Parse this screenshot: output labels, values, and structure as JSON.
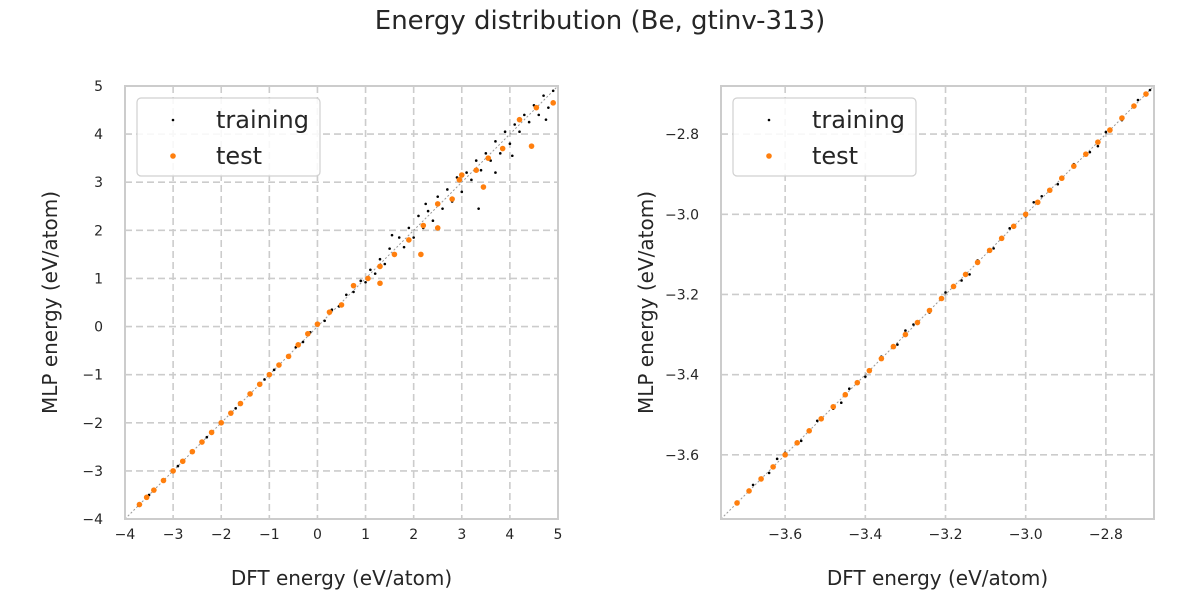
{
  "figure": {
    "title": "Energy distribution (Be, gtinv-313)"
  },
  "colors": {
    "training": "#000000",
    "test": "#ff7f0e",
    "grid": "#cccccc",
    "spine": "#cccccc",
    "diagonal": "#999999"
  },
  "chart_data": [
    {
      "type": "scatter",
      "title": "",
      "xlabel": "DFT energy (eV/atom)",
      "ylabel": "MLP energy (eV/atom)",
      "xlim": [
        -4,
        5
      ],
      "ylim": [
        -4,
        5
      ],
      "xticks": [
        -4,
        -3,
        -2,
        -1,
        0,
        1,
        2,
        3,
        4,
        5
      ],
      "yticks": [
        -4,
        -3,
        -2,
        -1,
        0,
        1,
        2,
        3,
        4,
        5
      ],
      "xtick_labels": [
        "−4",
        "−3",
        "−2",
        "−1",
        "0",
        "1",
        "2",
        "3",
        "4",
        "5"
      ],
      "ytick_labels": [
        "−4",
        "−3",
        "−2",
        "−1",
        "0",
        "1",
        "2",
        "3",
        "4",
        "5"
      ],
      "grid": true,
      "legend": "upper-left",
      "diagonal": true,
      "series": [
        {
          "name": "training",
          "color": "#000000",
          "x": [
            -3.72,
            -3.5,
            -3.2,
            -2.9,
            -2.6,
            -2.3,
            -2.0,
            -1.7,
            -1.4,
            -1.1,
            -0.9,
            -0.6,
            -0.45,
            -0.3,
            -0.15,
            0.0,
            0.15,
            0.3,
            0.45,
            0.6,
            0.75,
            0.9,
            1.0,
            1.1,
            1.2,
            1.3,
            1.4,
            1.5,
            1.6,
            1.7,
            1.8,
            1.9,
            2.0,
            2.1,
            2.2,
            2.3,
            2.4,
            2.5,
            2.6,
            2.7,
            2.8,
            2.9,
            3.0,
            3.1,
            3.2,
            3.3,
            3.4,
            3.5,
            3.6,
            3.7,
            3.8,
            3.9,
            4.0,
            4.1,
            4.2,
            4.3,
            4.4,
            4.5,
            4.6,
            4.7,
            4.8,
            4.9,
            3.35,
            4.05,
            4.75,
            2.25,
            1.55,
            3.7
          ],
          "y": [
            -3.72,
            -3.5,
            -3.2,
            -2.9,
            -2.6,
            -2.3,
            -2.0,
            -1.7,
            -1.4,
            -1.1,
            -0.9,
            -0.6,
            -0.43,
            -0.32,
            -0.12,
            0.05,
            0.12,
            0.35,
            0.42,
            0.66,
            0.72,
            0.95,
            0.92,
            1.18,
            1.1,
            1.4,
            1.3,
            1.62,
            1.5,
            1.85,
            1.65,
            2.05,
            1.85,
            2.3,
            2.05,
            2.4,
            2.2,
            2.7,
            2.45,
            2.85,
            2.6,
            3.1,
            2.8,
            3.2,
            3.05,
            3.45,
            3.25,
            3.6,
            3.45,
            3.85,
            3.6,
            4.05,
            3.8,
            4.2,
            4.05,
            4.4,
            4.25,
            4.6,
            4.4,
            4.8,
            4.55,
            4.9,
            2.45,
            3.55,
            4.3,
            2.55,
            1.9,
            3.2
          ]
        },
        {
          "name": "test",
          "color": "#ff7f0e",
          "x": [
            -3.7,
            -3.55,
            -3.4,
            -3.2,
            -3.0,
            -2.8,
            -2.6,
            -2.4,
            -2.2,
            -2.0,
            -1.8,
            -1.6,
            -1.4,
            -1.2,
            -1.0,
            -0.8,
            -0.6,
            -0.4,
            -0.2,
            0.0,
            0.25,
            0.5,
            0.75,
            1.05,
            1.3,
            1.6,
            1.9,
            2.2,
            2.5,
            2.8,
            3.0,
            3.3,
            3.55,
            3.85,
            4.2,
            4.55,
            4.9,
            2.15,
            2.5,
            1.3,
            4.45,
            3.45,
            2.95
          ],
          "y": [
            -3.7,
            -3.55,
            -3.4,
            -3.2,
            -3.0,
            -2.8,
            -2.6,
            -2.4,
            -2.2,
            -2.0,
            -1.8,
            -1.6,
            -1.4,
            -1.2,
            -1.0,
            -0.8,
            -0.62,
            -0.38,
            -0.15,
            0.05,
            0.3,
            0.45,
            0.85,
            1.0,
            1.25,
            1.5,
            1.8,
            2.1,
            2.55,
            2.65,
            3.15,
            3.25,
            3.5,
            3.7,
            4.3,
            4.55,
            4.65,
            1.5,
            2.05,
            0.9,
            3.75,
            2.9,
            3.05
          ]
        }
      ]
    },
    {
      "type": "scatter",
      "title": "",
      "xlabel": "DFT energy (eV/atom)",
      "ylabel": "MLP energy (eV/atom)",
      "xlim": [
        -3.76,
        -2.68
      ],
      "ylim": [
        -3.76,
        -2.68
      ],
      "xticks": [
        -3.6,
        -3.4,
        -3.2,
        -3.0,
        -2.8
      ],
      "yticks": [
        -3.6,
        -3.4,
        -3.2,
        -3.0,
        -2.8
      ],
      "xtick_labels": [
        "−3.6",
        "−3.4",
        "−3.2",
        "−3.0",
        "−2.8"
      ],
      "ytick_labels": [
        "−3.6",
        "−3.4",
        "−3.2",
        "−3.0",
        "−2.8"
      ],
      "grid": true,
      "legend": "upper-left",
      "diagonal": true,
      "series": [
        {
          "name": "training",
          "color": "#000000",
          "x": [
            -3.72,
            -3.68,
            -3.64,
            -3.6,
            -3.56,
            -3.52,
            -3.48,
            -3.44,
            -3.4,
            -3.36,
            -3.32,
            -3.28,
            -3.24,
            -3.2,
            -3.16,
            -3.12,
            -3.08,
            -3.04,
            -3.0,
            -2.96,
            -2.92,
            -2.88,
            -2.84,
            -2.8,
            -2.76,
            -2.72,
            -2.69,
            -3.62,
            -3.46,
            -3.3,
            -3.14,
            -2.98,
            -2.82
          ],
          "y": [
            -3.72,
            -3.675,
            -3.645,
            -3.595,
            -3.565,
            -3.515,
            -3.485,
            -3.435,
            -3.405,
            -3.355,
            -3.325,
            -3.275,
            -3.245,
            -3.195,
            -3.165,
            -3.115,
            -3.085,
            -3.035,
            -3.005,
            -2.955,
            -2.925,
            -2.875,
            -2.845,
            -2.795,
            -2.765,
            -2.715,
            -2.69,
            -3.61,
            -3.47,
            -3.29,
            -3.15,
            -2.97,
            -2.83
          ]
        },
        {
          "name": "test",
          "color": "#ff7f0e",
          "x": [
            -3.72,
            -3.69,
            -3.66,
            -3.63,
            -3.6,
            -3.57,
            -3.54,
            -3.51,
            -3.48,
            -3.45,
            -3.42,
            -3.39,
            -3.36,
            -3.33,
            -3.3,
            -3.27,
            -3.24,
            -3.21,
            -3.18,
            -3.15,
            -3.12,
            -3.09,
            -3.06,
            -3.03,
            -3.0,
            -2.97,
            -2.94,
            -2.91,
            -2.88,
            -2.85,
            -2.82,
            -2.79,
            -2.76,
            -2.73,
            -2.7
          ],
          "y": [
            -3.72,
            -3.69,
            -3.66,
            -3.63,
            -3.6,
            -3.57,
            -3.54,
            -3.51,
            -3.48,
            -3.45,
            -3.42,
            -3.39,
            -3.36,
            -3.33,
            -3.3,
            -3.27,
            -3.24,
            -3.21,
            -3.18,
            -3.15,
            -3.12,
            -3.09,
            -3.06,
            -3.03,
            -3.0,
            -2.97,
            -2.94,
            -2.91,
            -2.88,
            -2.85,
            -2.82,
            -2.79,
            -2.76,
            -2.73,
            -2.7
          ]
        }
      ]
    }
  ]
}
